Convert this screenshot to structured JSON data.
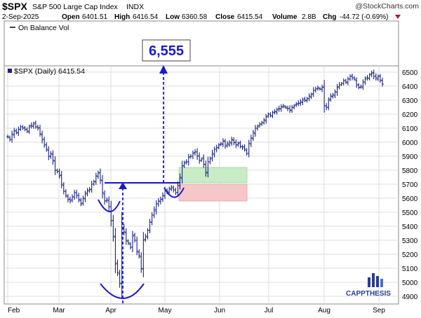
{
  "header": {
    "symbol": "$SPX",
    "name": "S&P 500 Large Cap Index",
    "exchange": "INDX",
    "watermark": "@StockCharts.com",
    "date": "2-Sep-2025",
    "open_label": "Open",
    "open": "6401.51",
    "high_label": "High",
    "high": "6416.54",
    "low_label": "Low",
    "low": "6360.58",
    "close_label": "Close",
    "close": "6415.54",
    "volume_label": "Volume",
    "volume": "2.8B",
    "chg_label": "Chg",
    "chg": "-44.72 (-0.69%)"
  },
  "obv_panel": {
    "legend": "On Balance Vol"
  },
  "price_panel": {
    "legend": "$SPX (Daily) 6415.54"
  },
  "annotation": {
    "target_label": "6,555"
  },
  "logo": {
    "text": "CAPPTHESIS"
  },
  "colors": {
    "price_bars": "#1a237e",
    "annotation": "#1a1acc",
    "green_zone": "#c8ecc6",
    "red_zone": "#f6c7c9",
    "grid": "#dddddd"
  },
  "chart_data": {
    "type": "bar",
    "title": "$SPX (Daily) 6415.54",
    "ylim": [
      4800,
      6560
    ],
    "y_ticks": [
      4900,
      5000,
      5100,
      5200,
      5300,
      5400,
      5500,
      5600,
      5700,
      5800,
      5900,
      6000,
      6100,
      6200,
      6300,
      6400,
      6500
    ],
    "x_ticks": [
      "Feb",
      "Mar",
      "Apr",
      "May",
      "Jun",
      "Jul",
      "Aug",
      "Sep"
    ],
    "grid": true,
    "points": [
      6040,
      6020,
      6060,
      6080,
      6070,
      6090,
      6110,
      6100,
      6090,
      6080,
      6110,
      6120,
      6130,
      6110,
      6100,
      6060,
      6020,
      5980,
      5950,
      5900,
      5920,
      5870,
      5800,
      5790,
      5760,
      5700,
      5650,
      5620,
      5590,
      5580,
      5610,
      5640,
      5620,
      5590,
      5560,
      5600,
      5630,
      5650,
      5660,
      5700,
      5720,
      5760,
      5780,
      5730,
      5640,
      5580,
      5590,
      5540,
      5440,
      5330,
      5130,
      5070,
      4990,
      5390,
      5360,
      5300,
      5280,
      5250,
      5330,
      5300,
      5220,
      5190,
      5100,
      5300,
      5330,
      5370,
      5430,
      5480,
      5520,
      5560,
      5580,
      5590,
      5620,
      5660,
      5650,
      5670,
      5680,
      5660,
      5640,
      5690,
      5750,
      5830,
      5850,
      5860,
      5890,
      5900,
      5920,
      5930,
      5900,
      5870,
      5880,
      5840,
      5780,
      5860,
      5880,
      5920,
      5950,
      5960,
      5980,
      5990,
      6010,
      5970,
      5990,
      6000,
      6020,
      6000,
      5980,
      5990,
      5970,
      5960,
      5950,
      5920,
      5990,
      6030,
      6070,
      6100,
      6110,
      6130,
      6140,
      6160,
      6180,
      6200,
      6190,
      6210,
      6220,
      6230,
      6240,
      6250,
      6260,
      6250,
      6240,
      6230,
      6250,
      6260,
      6270,
      6280,
      6290,
      6300,
      6300,
      6310,
      6330,
      6340,
      6370,
      6380,
      6390,
      6380,
      6390,
      6260,
      6250,
      6300,
      6330,
      6340,
      6360,
      6390,
      6410,
      6420,
      6440,
      6430,
      6450,
      6470,
      6460,
      6450,
      6410,
      6390,
      6400,
      6430,
      6450,
      6460,
      6480,
      6490,
      6470,
      6460,
      6470,
      6440,
      6415
    ],
    "levels": {
      "neckline": 5710,
      "target": 6555,
      "head_low": 4835
    },
    "zones": [
      {
        "name": "green",
        "from": 5710,
        "to": 5820
      },
      {
        "name": "red",
        "from": 5580,
        "to": 5700
      }
    ]
  }
}
